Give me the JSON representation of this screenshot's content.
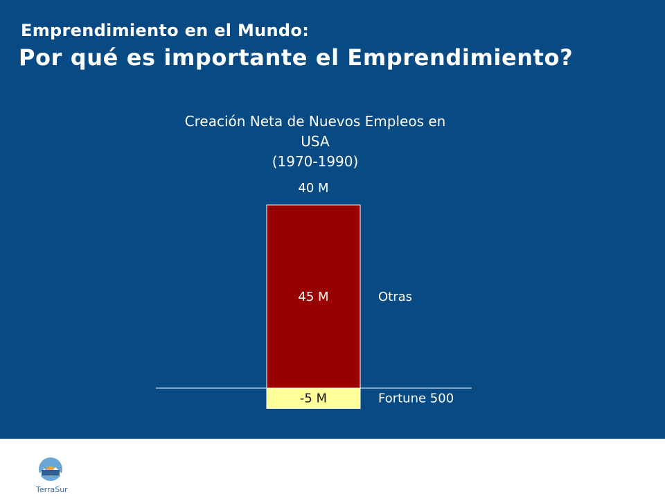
{
  "slide": {
    "title_line1": "Emprendimiento en el Mundo:",
    "title_line2": "Por qué es importante el Emprendimiento?"
  },
  "logo": {
    "text": "TerraSur",
    "colors": {
      "circle": "#6aa7d6",
      "sun": "#f2a23a",
      "text": "#3a6ea5"
    }
  },
  "colors": {
    "background": "#074a84",
    "bar_positive": "#990000",
    "bar_negative": "#ffff99",
    "text": "#ffffff"
  },
  "chart_data": {
    "type": "bar",
    "title_lines": [
      "Creación Neta de Nuevos Empleos en",
      "USA",
      "(1970-1990)"
    ],
    "stacked": true,
    "total_label": "40 M",
    "total": 40,
    "series": [
      {
        "name": "Otras",
        "value": 45,
        "label": "45 M",
        "color": "#990000"
      },
      {
        "name": "Fortune 500",
        "value": -5,
        "label": "-5 M",
        "color": "#ffff99"
      }
    ],
    "ylim": [
      -5,
      45
    ],
    "units": "M"
  }
}
